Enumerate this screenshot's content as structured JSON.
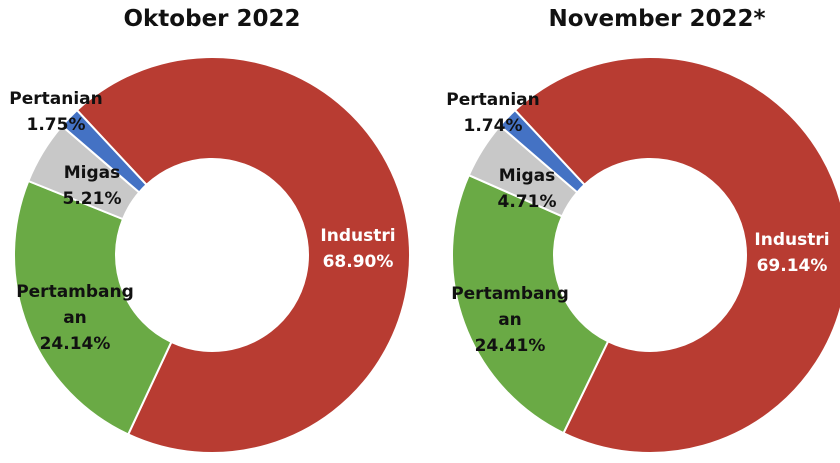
{
  "chart_data": [
    {
      "type": "pie",
      "donut": true,
      "title": "Oktober 2022",
      "categories": [
        "Industri",
        "Pertambang\nan",
        "Migas",
        "Pertanian"
      ],
      "values": [
        68.9,
        24.14,
        5.21,
        1.75
      ],
      "value_labels": [
        "68.90%",
        "24.14%",
        "5.21%",
        "1.75%"
      ],
      "colors": [
        "#b83c32",
        "#6aaa45",
        "#c8c8c8",
        "#4472c4"
      ]
    },
    {
      "type": "pie",
      "donut": true,
      "title": "November 2022*",
      "categories": [
        "Industri",
        "Pertambang\nan",
        "Migas",
        "Pertanian"
      ],
      "values": [
        69.14,
        24.41,
        4.71,
        1.74
      ],
      "value_labels": [
        "69.14%",
        "24.41%",
        "4.71%",
        "1.74%"
      ],
      "colors": [
        "#b83c32",
        "#6aaa45",
        "#c8c8c8",
        "#4472c4"
      ]
    }
  ]
}
